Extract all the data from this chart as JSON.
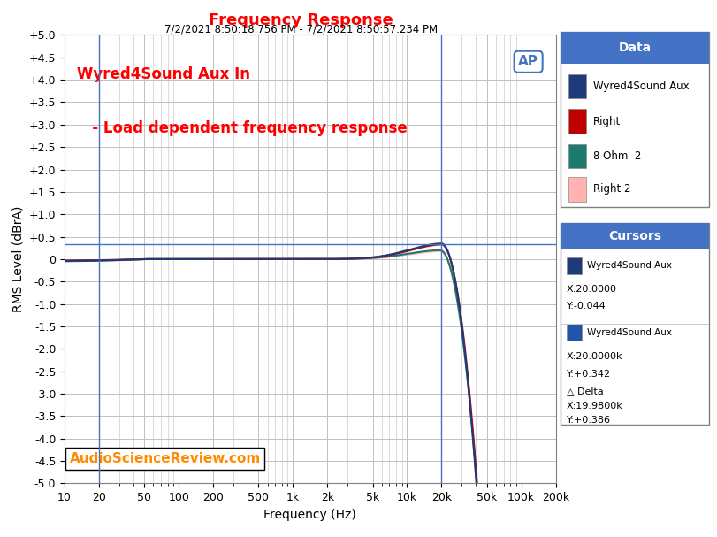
{
  "title": "Frequency Response",
  "subtitle": "7/2/2021 8:50:18.756 PM - 7/2/2021 8:50:57.234 PM",
  "title_color": "#FF0000",
  "annotation_line1": "Wyred4Sound Aux In",
  "annotation_line2": "   - Load dependent frequency response",
  "annotation_color": "#FF0000",
  "watermark_text": "AudioScienceReview.com",
  "watermark_color": "#FF8C00",
  "xlabel": "Frequency (Hz)",
  "ylabel": "RMS Level (dBrA)",
  "ylim": [
    -5.0,
    5.0
  ],
  "yticks": [
    -5.0,
    -4.5,
    -4.0,
    -3.5,
    -3.0,
    -2.5,
    -2.0,
    -1.5,
    -1.0,
    -0.5,
    0.0,
    0.5,
    1.0,
    1.5,
    2.0,
    2.5,
    3.0,
    3.5,
    4.0,
    4.5,
    5.0
  ],
  "ytick_labels": [
    "-5.0",
    "-4.5",
    "-4.0",
    "-3.5",
    "-3.0",
    "-2.5",
    "-2.0",
    "-1.5",
    "-1.0",
    "-0.5",
    "0",
    "+0.5",
    "+1.0",
    "+1.5",
    "+2.0",
    "+2.5",
    "+3.0",
    "+3.5",
    "+4.0",
    "+4.5",
    "+5.0"
  ],
  "xmin": 10,
  "xmax": 200000,
  "cursor_vline1": 20,
  "cursor_vline2": 20000,
  "cursor_hline": 0.342,
  "background_color": "#FFFFFF",
  "plot_bg_color": "#FFFFFF",
  "grid_color": "#C0C0C0",
  "legend_header_bg": "#4472C4",
  "legend_header_color": "#FFFFFF",
  "legend_entries": [
    "Wyred4Sound Aux",
    "Right",
    "8 Ohm  2",
    "Right 2"
  ],
  "legend_colors": [
    "#1F3A7A",
    "#C00000",
    "#1F7A6E",
    "#FFB3B3"
  ],
  "cursors_header_bg": "#4472C4",
  "cursors_header_color": "#FFFFFF",
  "ap_logo_color": "#4472C4",
  "cursor1_label": "Wyred4Sound Aux",
  "cursor1_x": "X:20.0000",
  "cursor1_y": "Y:-0.044",
  "cursor2_label": "Wyred4Sound Aux",
  "cursor2_x": "X:20.0000k",
  "cursor2_y": "Y:+0.342",
  "delta_label": "△ Delta",
  "delta_x": "X:19.9800k",
  "delta_y": "Y:+0.386"
}
